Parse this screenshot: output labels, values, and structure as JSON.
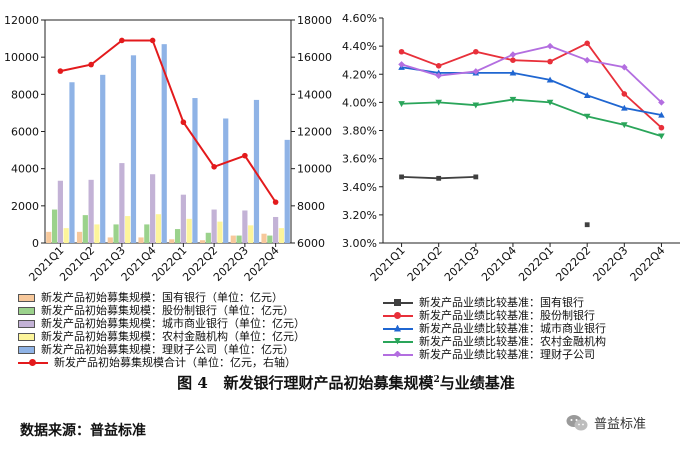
{
  "caption": {
    "prefix": "图 4",
    "main": "新发银行理财产品初始募集规模",
    "sup": "2",
    "tail": "与业绩基准"
  },
  "source": "数据来源：普益标准",
  "watermark": "普益标准",
  "colors": {
    "gyb": "#f7c89b",
    "gfb": "#9bd28c",
    "csb": "#c3b2d6",
    "ncb": "#fdf59b",
    "lcb": "#8fb3e6",
    "total": "#e31a1c",
    "l_gyb": "#404040",
    "l_gfb": "#e8303a",
    "l_csb": "#1f66d1",
    "l_ncb": "#2aa55a",
    "l_lcb": "#b36ee0"
  },
  "chart_data": [
    {
      "type": "bar",
      "categories": [
        "2021Q1",
        "2021Q2",
        "2021Q3",
        "2021Q4",
        "2022Q1",
        "2022Q2",
        "2022Q3",
        "2022Q4"
      ],
      "ylim": [
        0,
        12000
      ],
      "yticks": [
        "0",
        "2000",
        "4000",
        "6000",
        "8000",
        "10000",
        "12000"
      ],
      "y2lim": [
        6000,
        18000
      ],
      "y2ticks": [
        "6000",
        "8000",
        "10000",
        "12000",
        "14000",
        "16000",
        "18000"
      ],
      "series": [
        {
          "name": "新发产品初始募集规模：国有银行（单位：亿元）",
          "color_key": "gyb",
          "values": [
            600,
            600,
            300,
            300,
            200,
            150,
            400,
            500
          ]
        },
        {
          "name": "新发产品初始募集规模：股份制银行（单位：亿元）",
          "color_key": "gfb",
          "values": [
            1800,
            1500,
            1000,
            1000,
            750,
            550,
            400,
            400
          ]
        },
        {
          "name": "新发产品初始募集规模：城市商业银行（单位：亿元）",
          "color_key": "csb",
          "values": [
            3350,
            3400,
            4300,
            3700,
            2600,
            1800,
            1750,
            1400
          ]
        },
        {
          "name": "新发产品初始募集规模：农村金融机构（单位：亿元）",
          "color_key": "ncb",
          "values": [
            800,
            1000,
            1450,
            1550,
            1300,
            1150,
            950,
            800
          ]
        },
        {
          "name": "新发产品初始募集规模：理财子公司（单位：亿元）",
          "color_key": "lcb",
          "values": [
            8650,
            9050,
            10100,
            10700,
            7800,
            6700,
            7700,
            5550
          ]
        }
      ],
      "line": {
        "name": "新发产品初始募集规模合计（单位：亿元，右轴）",
        "color_key": "total",
        "values": [
          15250,
          15600,
          16900,
          16900,
          12500,
          10100,
          10700,
          8200
        ]
      }
    },
    {
      "type": "line",
      "categories": [
        "2021Q1",
        "2021Q2",
        "2021Q3",
        "2021Q4",
        "2022Q1",
        "2022Q2",
        "2022Q3",
        "2022Q4"
      ],
      "ylim": [
        3.0,
        4.6
      ],
      "yticks": [
        "3.00%",
        "3.20%",
        "3.40%",
        "3.60%",
        "3.80%",
        "4.00%",
        "4.20%",
        "4.40%",
        "4.60%"
      ],
      "series": [
        {
          "name": "新发产品业绩比较基准：国有银行",
          "color_key": "l_gyb",
          "marker": "square",
          "values": [
            3.47,
            3.46,
            3.47,
            null,
            null,
            3.13,
            null,
            null
          ]
        },
        {
          "name": "新发产品业绩比较基准：股份制银行",
          "color_key": "l_gfb",
          "marker": "circle",
          "values": [
            4.36,
            4.26,
            4.36,
            4.3,
            4.29,
            4.42,
            4.06,
            3.82
          ]
        },
        {
          "name": "新发产品业绩比较基准：城市商业银行",
          "color_key": "l_csb",
          "marker": "triangle-up",
          "values": [
            4.25,
            4.21,
            4.21,
            4.21,
            4.16,
            4.05,
            3.96,
            3.91
          ]
        },
        {
          "name": "新发产品业绩比较基准：农村金融机构",
          "color_key": "l_ncb",
          "marker": "triangle-down",
          "values": [
            3.99,
            4.0,
            3.98,
            4.02,
            4.0,
            3.9,
            3.84,
            3.76
          ]
        },
        {
          "name": "新发产品业绩比较基准：理财子公司",
          "color_key": "l_lcb",
          "marker": "diamond",
          "values": [
            4.27,
            4.19,
            4.22,
            4.34,
            4.4,
            4.3,
            4.25,
            4.0
          ]
        }
      ]
    }
  ]
}
